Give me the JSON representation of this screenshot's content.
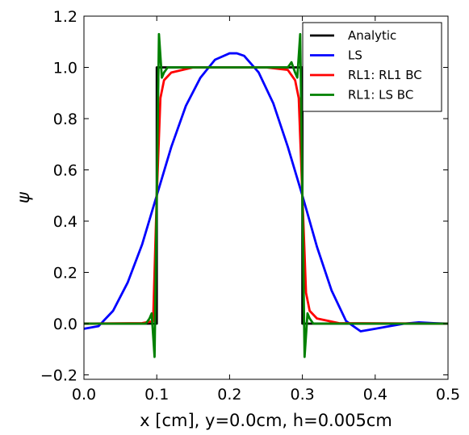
{
  "chart_data": {
    "type": "line",
    "xlabel": "x [cm], y=0.0cm, h=0.005cm",
    "ylabel": "ψ",
    "xlim": [
      0.0,
      0.5
    ],
    "ylim": [
      -0.22,
      1.2
    ],
    "xticks": [
      0.0,
      0.1,
      0.2,
      0.3,
      0.4,
      0.5
    ],
    "xtick_labels": [
      "0.0",
      "0.1",
      "0.2",
      "0.3",
      "0.4",
      "0.5"
    ],
    "yticks": [
      -0.2,
      0.0,
      0.2,
      0.4,
      0.6,
      0.8,
      1.0,
      1.2
    ],
    "ytick_labels": [
      "−0.2",
      "0.0",
      "0.2",
      "0.4",
      "0.6",
      "0.8",
      "1.0",
      "1.2"
    ],
    "grid": false,
    "legend_position": "top-right",
    "series": [
      {
        "name": "Analytic",
        "color": "#000000",
        "x": [
          0.0,
          0.1,
          0.1,
          0.3,
          0.3,
          0.5
        ],
        "y": [
          0.0,
          0.0,
          1.0,
          1.0,
          0.0,
          0.0
        ]
      },
      {
        "name": "LS",
        "color": "#0000ff",
        "x": [
          0.0,
          0.02,
          0.04,
          0.06,
          0.08,
          0.1,
          0.12,
          0.14,
          0.16,
          0.18,
          0.2,
          0.21,
          0.22,
          0.24,
          0.26,
          0.28,
          0.3,
          0.32,
          0.34,
          0.36,
          0.38,
          0.4,
          0.42,
          0.44,
          0.46,
          0.48,
          0.5
        ],
        "y": [
          -0.02,
          -0.01,
          0.05,
          0.16,
          0.31,
          0.5,
          0.69,
          0.85,
          0.96,
          1.03,
          1.055,
          1.055,
          1.045,
          0.98,
          0.86,
          0.69,
          0.5,
          0.3,
          0.13,
          0.01,
          -0.03,
          -0.02,
          -0.01,
          0.0,
          0.005,
          0.002,
          0.0
        ]
      },
      {
        "name": "RL1: RL1 BC",
        "color": "#ff0000",
        "x": [
          0.0,
          0.08,
          0.095,
          0.1,
          0.105,
          0.11,
          0.12,
          0.15,
          0.25,
          0.28,
          0.29,
          0.295,
          0.3,
          0.305,
          0.31,
          0.32,
          0.35,
          0.5
        ],
        "y": [
          0.0,
          0.002,
          0.01,
          0.5,
          0.88,
          0.95,
          0.98,
          1.0,
          1.0,
          0.99,
          0.95,
          0.88,
          0.5,
          0.12,
          0.05,
          0.02,
          0.002,
          0.0
        ]
      },
      {
        "name": "RL1: LS BC",
        "color": "#008000",
        "x": [
          0.0,
          0.085,
          0.09,
          0.093,
          0.097,
          0.1,
          0.103,
          0.107,
          0.11,
          0.115,
          0.12,
          0.15,
          0.25,
          0.28,
          0.285,
          0.29,
          0.293,
          0.297,
          0.3,
          0.303,
          0.307,
          0.31,
          0.315,
          0.32,
          0.5
        ],
        "y": [
          0.0,
          0.0,
          0.02,
          0.04,
          -0.13,
          0.5,
          1.13,
          0.96,
          0.98,
          1.0,
          1.0,
          1.0,
          1.0,
          1.0,
          1.02,
          0.98,
          0.96,
          1.13,
          0.5,
          -0.13,
          0.04,
          0.02,
          0.0,
          0.0,
          0.0
        ]
      }
    ]
  }
}
